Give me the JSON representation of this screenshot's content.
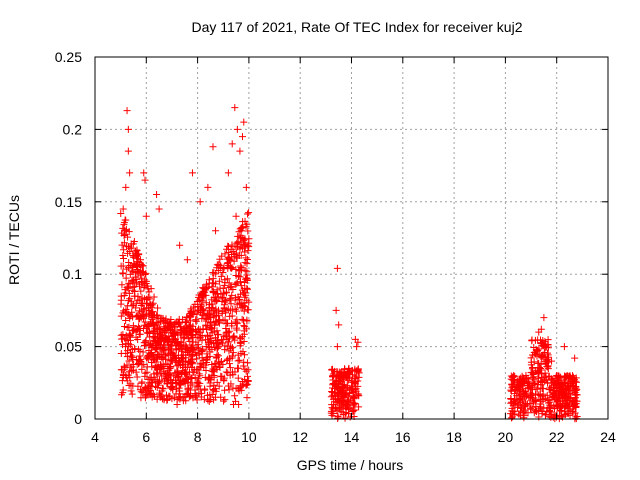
{
  "chart_data": {
    "type": "scatter",
    "title": "Day 117 of 2021, Rate Of TEC Index for receiver kuj2",
    "xlabel": "GPS time / hours",
    "ylabel": "ROTI / TECUs",
    "xlim": [
      4,
      24
    ],
    "ylim": [
      0,
      0.25
    ],
    "grid": true,
    "marker": "+",
    "color": "#ff0000",
    "x_ticks": [
      4,
      6,
      8,
      10,
      12,
      14,
      16,
      18,
      20,
      22,
      24
    ],
    "x_tick_labels": [
      "4",
      "6",
      "8",
      "10",
      "12",
      "14",
      "16",
      "18",
      "20",
      "22",
      "24"
    ],
    "y_ticks": [
      0,
      0.05,
      0.1,
      0.15,
      0.2,
      0.25
    ],
    "y_tick_labels": [
      "0",
      "0.05",
      "0.1",
      "0.15",
      "0.2",
      "0.25"
    ],
    "series": [
      {
        "name": "kuj2 ROTI",
        "clusters": [
          {
            "x_range": [
              5.0,
              10.0
            ],
            "y_range": [
              0.01,
              0.215
            ],
            "typical_max": 0.13
          },
          {
            "x_range": [
              13.2,
              14.3
            ],
            "y_range": [
              0.0,
              0.105
            ],
            "typical_max": 0.035
          },
          {
            "x_range": [
              20.2,
              22.8
            ],
            "y_range": [
              0.0,
              0.07
            ],
            "typical_max": 0.035
          }
        ],
        "points": [
          [
            5.25,
            0.213
          ],
          [
            5.3,
            0.2
          ],
          [
            5.35,
            0.17
          ],
          [
            5.3,
            0.185
          ],
          [
            5.9,
            0.17
          ],
          [
            5.95,
            0.165
          ],
          [
            6.4,
            0.155
          ],
          [
            6.5,
            0.145
          ],
          [
            6.0,
            0.14
          ],
          [
            5.1,
            0.145
          ],
          [
            5.2,
            0.16
          ],
          [
            5.15,
            0.13
          ],
          [
            7.3,
            0.12
          ],
          [
            7.6,
            0.11
          ],
          [
            7.8,
            0.17
          ],
          [
            8.1,
            0.15
          ],
          [
            8.4,
            0.16
          ],
          [
            8.6,
            0.188
          ],
          [
            8.7,
            0.13
          ],
          [
            9.2,
            0.17
          ],
          [
            9.35,
            0.19
          ],
          [
            9.45,
            0.215
          ],
          [
            9.55,
            0.2
          ],
          [
            9.65,
            0.185
          ],
          [
            9.75,
            0.195
          ],
          [
            9.8,
            0.205
          ],
          [
            9.9,
            0.16
          ],
          [
            9.7,
            0.13
          ],
          [
            9.5,
            0.14
          ],
          [
            9.25,
            0.11
          ],
          [
            5.1,
            0.02
          ],
          [
            5.2,
            0.03
          ],
          [
            6.2,
            0.025
          ],
          [
            7.2,
            0.01
          ],
          [
            7.5,
            0.015
          ],
          [
            8.4,
            0.013
          ],
          [
            9.4,
            0.01
          ],
          [
            9.6,
            0.01
          ],
          [
            7.9,
            0.02
          ],
          [
            8.9,
            0.015
          ],
          [
            13.45,
            0.104
          ],
          [
            13.4,
            0.075
          ],
          [
            13.5,
            0.065
          ],
          [
            13.45,
            0.05
          ],
          [
            14.15,
            0.055
          ],
          [
            14.25,
            0.053
          ],
          [
            14.2,
            0.05
          ],
          [
            13.3,
            0.01
          ],
          [
            13.6,
            0.005
          ],
          [
            13.8,
            0.03
          ],
          [
            14.0,
            0.02
          ],
          [
            13.9,
            0.035
          ],
          [
            21.5,
            0.07
          ],
          [
            21.4,
            0.062
          ],
          [
            21.3,
            0.06
          ],
          [
            21.55,
            0.05
          ],
          [
            22.3,
            0.05
          ],
          [
            22.7,
            0.042
          ],
          [
            22.6,
            0.005
          ],
          [
            20.3,
            0.005
          ],
          [
            20.8,
            0.03
          ],
          [
            21.0,
            0.032
          ],
          [
            21.8,
            0.04
          ],
          [
            22.0,
            0.03
          ]
        ]
      }
    ]
  }
}
